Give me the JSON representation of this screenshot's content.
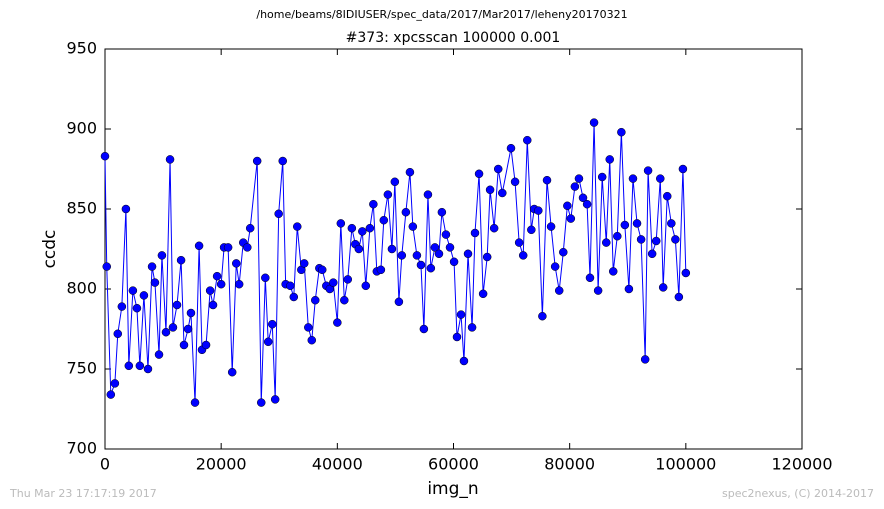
{
  "chart_data": {
    "type": "line",
    "suptitle": "/home/beams/8IDIUSER/spec_data/2017/Mar2017/leheny20170321",
    "title": "#373: xpcsscan 100000 0.001",
    "xlabel": "img_n",
    "ylabel": "ccdc",
    "footer_left": "Thu Mar 23 17:17:19 2017",
    "footer_right": "spec2nexus, (C) 2014-2017",
    "color": "#0000ff",
    "xlim": [
      0,
      120000
    ],
    "xticks": [
      0,
      20000,
      40000,
      60000,
      80000,
      100000,
      120000
    ],
    "ylim": [
      700,
      950
    ],
    "yticks": [
      700,
      750,
      800,
      850,
      900,
      950
    ],
    "x": [
      0,
      300,
      1000,
      1700,
      2200,
      2900,
      3600,
      4100,
      4800,
      5500,
      6000,
      6700,
      7400,
      8100,
      8600,
      9300,
      9800,
      10500,
      11200,
      11700,
      12400,
      13100,
      13600,
      14300,
      14800,
      15500,
      16200,
      16700,
      17400,
      18100,
      18600,
      19300,
      20000,
      20500,
      21200,
      21900,
      22600,
      23100,
      23800,
      24500,
      25000,
      26200,
      26900,
      27600,
      28100,
      28800,
      29300,
      29900,
      30600,
      31100,
      31900,
      32500,
      33100,
      33800,
      34300,
      35000,
      35600,
      36200,
      36900,
      37400,
      38100,
      38700,
      39300,
      40000,
      40600,
      41200,
      41800,
      42500,
      43100,
      43700,
      44300,
      44900,
      45600,
      46200,
      46800,
      47500,
      48000,
      48700,
      49400,
      49900,
      50600,
      51100,
      51800,
      52500,
      53000,
      53700,
      54400,
      54900,
      55600,
      56100,
      56800,
      57500,
      58000,
      58700,
      59400,
      60100,
      60600,
      61300,
      61800,
      62500,
      63200,
      63700,
      64400,
      65100,
      65800,
      66300,
      67000,
      67700,
      68400,
      69900,
      70600,
      71300,
      72000,
      72700,
      73400,
      73900,
      74600,
      75300,
      76100,
      76800,
      77500,
      78200,
      78900,
      79600,
      80200,
      80900,
      81600,
      82300,
      83000,
      83500,
      84200,
      84900,
      85600,
      86300,
      86900,
      87500,
      88200,
      88900,
      89500,
      90200,
      90900,
      91600,
      92300,
      93000,
      93500,
      94200,
      94900,
      95600,
      96100,
      96800,
      97500,
      98200,
      98800,
      99500,
      100000
    ],
    "values": [
      883,
      814,
      734,
      741,
      772,
      789,
      850,
      752,
      799,
      788,
      752,
      796,
      750,
      814,
      804,
      759,
      821,
      773,
      881,
      776,
      790,
      818,
      765,
      775,
      785,
      729,
      827,
      762,
      765,
      799,
      790,
      808,
      803,
      826,
      826,
      748,
      816,
      803,
      829,
      826,
      838,
      880,
      729,
      807,
      767,
      778,
      731,
      847,
      880,
      803,
      802,
      795,
      839,
      812,
      816,
      776,
      768,
      793,
      813,
      812,
      802,
      800,
      804,
      779,
      841,
      793,
      806,
      838,
      828,
      825,
      836,
      802,
      838,
      853,
      811,
      812,
      843,
      859,
      825,
      867,
      792,
      821,
      848,
      873,
      839,
      821,
      815,
      775,
      859,
      813,
      826,
      822,
      848,
      834,
      826,
      817,
      770,
      784,
      755,
      822,
      776,
      835,
      872,
      797,
      820,
      862,
      838,
      875,
      860,
      888,
      867,
      829,
      821,
      893,
      837,
      850,
      849,
      783,
      868,
      839,
      814,
      799,
      823,
      852,
      844,
      864,
      869,
      857,
      853,
      807,
      904,
      799,
      870,
      829,
      881,
      811,
      833,
      898,
      840,
      800,
      869,
      841,
      831,
      756,
      874,
      822,
      830,
      869,
      801,
      858,
      841,
      831,
      795,
      875,
      810
    ]
  }
}
